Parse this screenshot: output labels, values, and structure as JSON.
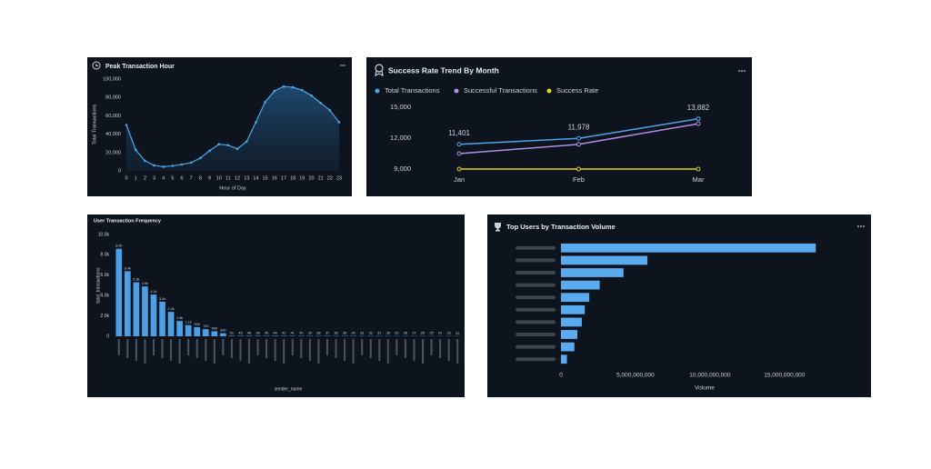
{
  "chart_data": [
    {
      "type": "area",
      "title": "Peak Transaction Hour",
      "x_label": "Hour of Day",
      "y_label": "Total Transactions",
      "color": "#4aa8e8",
      "x": [
        0,
        1,
        2,
        3,
        4,
        5,
        6,
        7,
        8,
        9,
        10,
        11,
        12,
        13,
        14,
        15,
        16,
        17,
        18,
        19,
        20,
        21,
        22,
        23
      ],
      "values": [
        50000,
        23000,
        11000,
        6000,
        4500,
        5500,
        7000,
        9000,
        14000,
        22000,
        29000,
        28000,
        24000,
        32000,
        53000,
        75000,
        87000,
        92000,
        91000,
        88000,
        82000,
        74000,
        66000,
        53000
      ],
      "xlim": [
        0,
        23
      ],
      "xticks": [
        0,
        1,
        2,
        3,
        4,
        5,
        6,
        7,
        8,
        9,
        10,
        11,
        12,
        13,
        14,
        15,
        16,
        17,
        18,
        19,
        20,
        21,
        22,
        23
      ],
      "ylim": [
        0,
        100000
      ],
      "yticks": [
        0,
        {
          "value": 20000,
          "label": "20,000"
        },
        {
          "value": 40000,
          "label": "40,000"
        },
        {
          "value": 60000,
          "label": "60,000"
        },
        {
          "value": 80000,
          "label": "80,000"
        },
        {
          "value": 100000,
          "label": "100,000"
        }
      ],
      "grid": false
    },
    {
      "type": "line",
      "title": "Success Rate Trend By Month",
      "categories": [
        "Jan",
        "Feb",
        "Mar"
      ],
      "series": [
        {
          "name": "Total Transactions",
          "color": "#4da3e8",
          "values": [
            11401,
            11978,
            13882
          ],
          "value_labels": [
            "11,401",
            "11,978",
            "13,882"
          ]
        },
        {
          "name": "Successful Transactions",
          "color": "#b38ee8",
          "values": [
            10500,
            11400,
            13400
          ]
        },
        {
          "name": "Success Rate",
          "color": "#e8d21f",
          "values": [
            9000,
            9000,
            9000
          ]
        }
      ],
      "ylim": [
        9000,
        15000
      ],
      "yticks": [
        {
          "value": 9000,
          "label": "9,000"
        },
        {
          "value": 12000,
          "label": "12,000"
        },
        {
          "value": 15000,
          "label": "15,000"
        }
      ],
      "grid": false
    },
    {
      "type": "bar",
      "title": "User Transaction Frequency",
      "x_label": "sender_name",
      "y_label": "total_transactions",
      "color": "#4a9fe6",
      "categories": [
        null,
        null,
        null,
        null,
        null,
        null,
        null,
        null,
        null,
        null,
        null,
        null,
        null,
        null,
        null,
        null,
        null,
        null,
        null,
        null,
        null,
        null,
        null,
        null,
        null,
        null,
        null,
        null,
        null,
        null,
        null,
        null,
        null,
        null,
        null,
        null,
        null,
        null,
        null,
        null
      ],
      "values": [
        8600,
        6400,
        5300,
        4900,
        4100,
        3400,
        2400,
        1500,
        1100,
        900,
        700,
        500,
        300,
        51,
        49,
        48,
        46,
        45,
        44,
        42,
        41,
        40,
        39,
        38,
        37,
        36,
        35,
        34,
        33,
        32,
        31,
        30,
        29,
        28,
        27,
        26,
        25,
        24,
        23,
        22
      ],
      "value_labels": [
        "8.6k",
        "6.4k",
        "5.3k",
        "4.9k",
        "4.1k",
        "3.4k",
        "2.4k",
        "1.5k",
        "1.1k",
        "900",
        "700",
        "500",
        "300",
        "51",
        "49",
        "48",
        "46",
        "45",
        "44",
        "42",
        "41",
        "40",
        "39",
        "38",
        "37",
        "36",
        "35",
        "34",
        "33",
        "32",
        "31",
        "30",
        "29",
        "28",
        "27",
        "26",
        "25",
        "24",
        "23",
        "22"
      ],
      "ylim": [
        0,
        10000
      ],
      "yticks": [
        0,
        {
          "value": 2000,
          "label": "2.0k"
        },
        {
          "value": 4000,
          "label": "4.0k"
        },
        {
          "value": 6000,
          "label": "6.0k"
        },
        {
          "value": 8000,
          "label": "8.0k"
        },
        {
          "value": 10000,
          "label": "10.0k"
        }
      ],
      "grid": false
    },
    {
      "type": "barh",
      "title": "Top Users by Transaction Volume",
      "x_label": "Volume",
      "color": "#5aaaf0",
      "categories": [
        null,
        null,
        null,
        null,
        null,
        null,
        null,
        null,
        null,
        null
      ],
      "values": [
        17100000000,
        5800000000,
        4200000000,
        2600000000,
        1900000000,
        1600000000,
        1400000000,
        1100000000,
        900000000,
        400000000
      ],
      "xlim": [
        0,
        18000000000
      ],
      "xticks": [
        0,
        {
          "value": 5000000000,
          "label": "5,000,000,000"
        },
        {
          "value": 10000000000,
          "label": "10,000,000,000"
        },
        {
          "value": 15000000000,
          "label": "15,000,000,000"
        }
      ],
      "grid": false
    }
  ]
}
